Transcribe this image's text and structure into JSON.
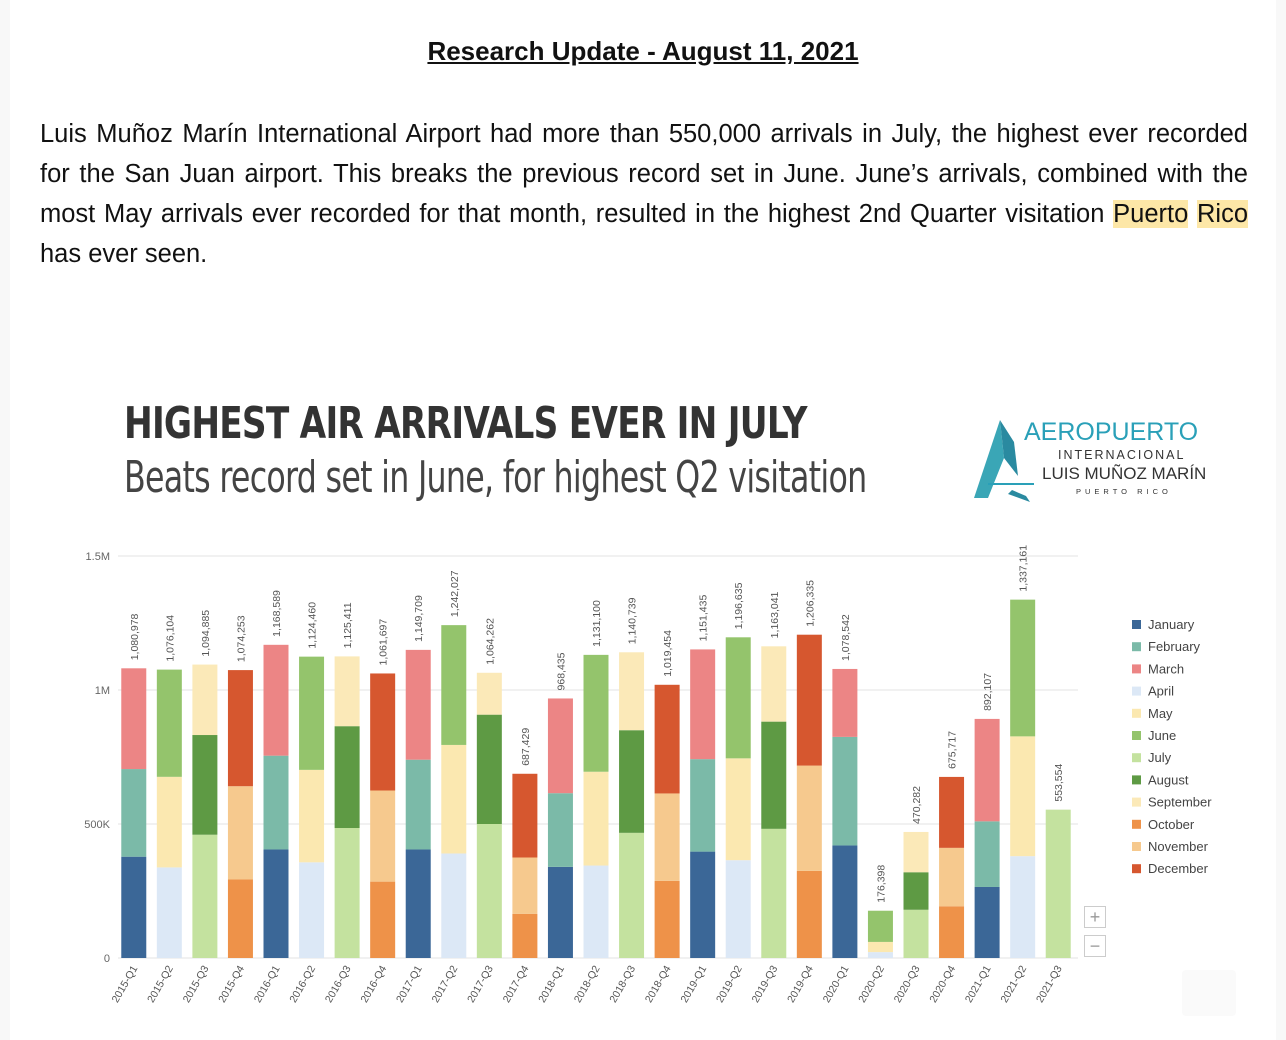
{
  "heading": "Research Update - August 11, 2021",
  "paragraph": {
    "before": "Luis Muñoz Marín International Airport had more than 550,000 arrivals in July, the highest ever recorded for the San Juan airport. This breaks the previous record set in June. June’s arrivals, combined with the most May arrivals ever recorded for that month, resulted in the highest 2nd Quarter visitation ",
    "hl1": "Puerto",
    "hl2": "Rico",
    "after": " has ever seen."
  },
  "logo": {
    "name": "AEROPUERTO",
    "sub": "INTERNACIONAL",
    "line": "LUIS MUÑOZ MARÍN",
    "place": "PUERTO RICO"
  },
  "zoom": {
    "plus": "+",
    "minus": "−"
  },
  "chart_data": {
    "type": "bar",
    "stacked": true,
    "title": "HIGHEST AIR ARRIVALS EVER IN JULY",
    "subtitle": "Beats record set in June, for highest Q2 visitation",
    "ylim": [
      0,
      1500000
    ],
    "yticks": [
      {
        "value": 0,
        "label": "0"
      },
      {
        "value": 500000,
        "label": "500K"
      },
      {
        "value": 1000000,
        "label": "1M"
      },
      {
        "value": 1500000,
        "label": "1.5M"
      }
    ],
    "grid": true,
    "legend_position": "right",
    "months": [
      {
        "name": "January",
        "color": "#3b6797"
      },
      {
        "name": "February",
        "color": "#7bbaa8"
      },
      {
        "name": "March",
        "color": "#ec8585"
      },
      {
        "name": "April",
        "color": "#dce8f6"
      },
      {
        "name": "May",
        "color": "#fbe8b0"
      },
      {
        "name": "June",
        "color": "#94c46c"
      },
      {
        "name": "July",
        "color": "#c4e29f"
      },
      {
        "name": "August",
        "color": "#5e9a44"
      },
      {
        "name": "September",
        "color": "#fbe9b8"
      },
      {
        "name": "October",
        "color": "#ee9249"
      },
      {
        "name": "November",
        "color": "#f6c98e"
      },
      {
        "name": "December",
        "color": "#d6572f"
      }
    ],
    "bars": [
      {
        "category": "2015-Q1",
        "total": 1080978,
        "label": "1,080,978",
        "segments": [
          {
            "month": "January",
            "value": 378000
          },
          {
            "month": "February",
            "value": 327000
          },
          {
            "month": "March",
            "value": 375978
          }
        ]
      },
      {
        "category": "2015-Q2",
        "total": 1076104,
        "label": "1,076,104",
        "segments": [
          {
            "month": "April",
            "value": 338000
          },
          {
            "month": "May",
            "value": 338000
          },
          {
            "month": "June",
            "value": 400104
          }
        ]
      },
      {
        "category": "2015-Q3",
        "total": 1094885,
        "label": "1,094,885",
        "segments": [
          {
            "month": "July",
            "value": 460000
          },
          {
            "month": "August",
            "value": 372000
          },
          {
            "month": "September",
            "value": 262885
          }
        ]
      },
      {
        "category": "2015-Q4",
        "total": 1074253,
        "label": "1,074,253",
        "segments": [
          {
            "month": "October",
            "value": 293000
          },
          {
            "month": "November",
            "value": 348000
          },
          {
            "month": "December",
            "value": 433253
          }
        ]
      },
      {
        "category": "2016-Q1",
        "total": 1168589,
        "label": "1,168,589",
        "segments": [
          {
            "month": "January",
            "value": 405000
          },
          {
            "month": "February",
            "value": 350000
          },
          {
            "month": "March",
            "value": 413589
          }
        ]
      },
      {
        "category": "2016-Q2",
        "total": 1124460,
        "label": "1,124,460",
        "segments": [
          {
            "month": "April",
            "value": 357000
          },
          {
            "month": "May",
            "value": 345000
          },
          {
            "month": "June",
            "value": 422460
          }
        ]
      },
      {
        "category": "2016-Q3",
        "total": 1125411,
        "label": "1,125,411",
        "segments": [
          {
            "month": "July",
            "value": 485000
          },
          {
            "month": "August",
            "value": 380000
          },
          {
            "month": "September",
            "value": 260411
          }
        ]
      },
      {
        "category": "2016-Q4",
        "total": 1061697,
        "label": "1,061,697",
        "segments": [
          {
            "month": "October",
            "value": 285000
          },
          {
            "month": "November",
            "value": 340000
          },
          {
            "month": "December",
            "value": 436697
          }
        ]
      },
      {
        "category": "2017-Q1",
        "total": 1149709,
        "label": "1,149,709",
        "segments": [
          {
            "month": "January",
            "value": 405000
          },
          {
            "month": "February",
            "value": 335000
          },
          {
            "month": "March",
            "value": 409709
          }
        ]
      },
      {
        "category": "2017-Q2",
        "total": 1242027,
        "label": "1,242,027",
        "segments": [
          {
            "month": "April",
            "value": 390000
          },
          {
            "month": "May",
            "value": 405000
          },
          {
            "month": "June",
            "value": 447027
          }
        ]
      },
      {
        "category": "2017-Q3",
        "total": 1064262,
        "label": "1,064,262",
        "segments": [
          {
            "month": "July",
            "value": 500000
          },
          {
            "month": "August",
            "value": 408000
          },
          {
            "month": "September",
            "value": 156262
          }
        ]
      },
      {
        "category": "2017-Q4",
        "total": 687429,
        "label": "687,429",
        "segments": [
          {
            "month": "October",
            "value": 165000
          },
          {
            "month": "November",
            "value": 210000
          },
          {
            "month": "December",
            "value": 312429
          }
        ]
      },
      {
        "category": "2018-Q1",
        "total": 968435,
        "label": "968,435",
        "segments": [
          {
            "month": "January",
            "value": 340000
          },
          {
            "month": "February",
            "value": 275000
          },
          {
            "month": "March",
            "value": 353435
          }
        ]
      },
      {
        "category": "2018-Q2",
        "total": 1131100,
        "label": "1,131,100",
        "segments": [
          {
            "month": "April",
            "value": 345000
          },
          {
            "month": "May",
            "value": 350000
          },
          {
            "month": "June",
            "value": 436100
          }
        ]
      },
      {
        "category": "2018-Q3",
        "total": 1140739,
        "label": "1,140,739",
        "segments": [
          {
            "month": "July",
            "value": 467000
          },
          {
            "month": "August",
            "value": 383000
          },
          {
            "month": "September",
            "value": 290739
          }
        ]
      },
      {
        "category": "2018-Q4",
        "total": 1019454,
        "label": "1,019,454",
        "segments": [
          {
            "month": "October",
            "value": 288000
          },
          {
            "month": "November",
            "value": 326000
          },
          {
            "month": "December",
            "value": 405454
          }
        ]
      },
      {
        "category": "2019-Q1",
        "total": 1151435,
        "label": "1,151,435",
        "segments": [
          {
            "month": "January",
            "value": 397000
          },
          {
            "month": "February",
            "value": 345000
          },
          {
            "month": "March",
            "value": 409435
          }
        ]
      },
      {
        "category": "2019-Q2",
        "total": 1196635,
        "label": "1,196,635",
        "segments": [
          {
            "month": "April",
            "value": 365000
          },
          {
            "month": "May",
            "value": 380000
          },
          {
            "month": "June",
            "value": 451635
          }
        ]
      },
      {
        "category": "2019-Q3",
        "total": 1163041,
        "label": "1,163,041",
        "segments": [
          {
            "month": "July",
            "value": 482000
          },
          {
            "month": "August",
            "value": 400000
          },
          {
            "month": "September",
            "value": 281041
          }
        ]
      },
      {
        "category": "2019-Q4",
        "total": 1206335,
        "label": "1,206,335",
        "segments": [
          {
            "month": "October",
            "value": 325000
          },
          {
            "month": "November",
            "value": 393000
          },
          {
            "month": "December",
            "value": 488335
          }
        ]
      },
      {
        "category": "2020-Q1",
        "total": 1078542,
        "label": "1,078,542",
        "segments": [
          {
            "month": "January",
            "value": 420000
          },
          {
            "month": "February",
            "value": 405000
          },
          {
            "month": "March",
            "value": 253542
          }
        ]
      },
      {
        "category": "2020-Q2",
        "total": 176398,
        "label": "176,398",
        "segments": [
          {
            "month": "April",
            "value": 22000
          },
          {
            "month": "May",
            "value": 38000
          },
          {
            "month": "June",
            "value": 116398
          }
        ]
      },
      {
        "category": "2020-Q3",
        "total": 470282,
        "label": "470,282",
        "segments": [
          {
            "month": "July",
            "value": 180000
          },
          {
            "month": "August",
            "value": 140000
          },
          {
            "month": "September",
            "value": 150282
          }
        ]
      },
      {
        "category": "2020-Q4",
        "total": 675717,
        "label": "675,717",
        "segments": [
          {
            "month": "October",
            "value": 193000
          },
          {
            "month": "November",
            "value": 218000
          },
          {
            "month": "December",
            "value": 264717
          }
        ]
      },
      {
        "category": "2021-Q1",
        "total": 892107,
        "label": "892,107",
        "segments": [
          {
            "month": "January",
            "value": 265000
          },
          {
            "month": "February",
            "value": 245000
          },
          {
            "month": "March",
            "value": 382107
          }
        ]
      },
      {
        "category": "2021-Q2",
        "total": 1337161,
        "label": "1,337,161",
        "segments": [
          {
            "month": "April",
            "value": 380000
          },
          {
            "month": "May",
            "value": 447000
          },
          {
            "month": "June",
            "value": 510161
          }
        ]
      },
      {
        "category": "2021-Q3",
        "total": 553554,
        "label": "553,554",
        "segments": [
          {
            "month": "July",
            "value": 553554
          }
        ]
      }
    ]
  }
}
